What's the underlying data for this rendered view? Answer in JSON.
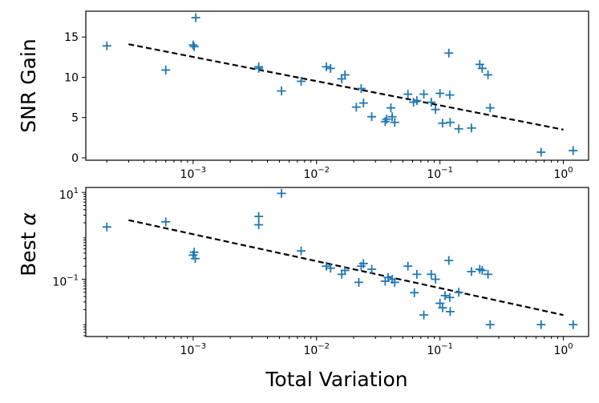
{
  "chart_data": [
    {
      "type": "scatter",
      "ylabel": "SNR Gain",
      "yscale": "linear",
      "xscale": "log",
      "xlim": [
        0.000135,
        1.6
      ],
      "ylim": [
        -0.3,
        18.2
      ],
      "ytick_values": [
        0,
        5,
        10,
        15
      ],
      "ytick_labels": [
        "0",
        "5",
        "10",
        "15"
      ],
      "xtick_values": [
        0.001,
        0.01,
        0.1,
        1
      ],
      "xtick_labels": [
        {
          "base": "10",
          "exp": "−3"
        },
        {
          "base": "10",
          "exp": "−2"
        },
        {
          "base": "10",
          "exp": "−1"
        },
        {
          "base": "10",
          "exp": "0"
        }
      ],
      "trend_line": {
        "x": [
          0.0003,
          1.0
        ],
        "y": [
          14.1,
          3.5
        ]
      },
      "points": [
        {
          "x": 0.0002,
          "y": 13.9
        },
        {
          "x": 0.0006,
          "y": 10.9
        },
        {
          "x": 0.001,
          "y": 14.0
        },
        {
          "x": 0.00102,
          "y": 13.8
        },
        {
          "x": 0.00105,
          "y": 17.4
        },
        {
          "x": 0.0034,
          "y": 11.3
        },
        {
          "x": 0.0034,
          "y": 11.1
        },
        {
          "x": 0.0052,
          "y": 8.3
        },
        {
          "x": 0.0075,
          "y": 9.5
        },
        {
          "x": 0.012,
          "y": 11.3
        },
        {
          "x": 0.013,
          "y": 11.1
        },
        {
          "x": 0.016,
          "y": 9.8
        },
        {
          "x": 0.017,
          "y": 10.3
        },
        {
          "x": 0.021,
          "y": 6.3
        },
        {
          "x": 0.023,
          "y": 8.6
        },
        {
          "x": 0.024,
          "y": 6.8
        },
        {
          "x": 0.028,
          "y": 5.1
        },
        {
          "x": 0.036,
          "y": 4.5
        },
        {
          "x": 0.037,
          "y": 4.8
        },
        {
          "x": 0.04,
          "y": 6.2
        },
        {
          "x": 0.041,
          "y": 5.1
        },
        {
          "x": 0.043,
          "y": 4.4
        },
        {
          "x": 0.055,
          "y": 7.9
        },
        {
          "x": 0.061,
          "y": 6.9
        },
        {
          "x": 0.065,
          "y": 7.1
        },
        {
          "x": 0.074,
          "y": 7.9
        },
        {
          "x": 0.085,
          "y": 6.9
        },
        {
          "x": 0.092,
          "y": 6.0
        },
        {
          "x": 0.1,
          "y": 8.0
        },
        {
          "x": 0.105,
          "y": 4.3
        },
        {
          "x": 0.118,
          "y": 13.0
        },
        {
          "x": 0.12,
          "y": 7.8
        },
        {
          "x": 0.121,
          "y": 4.4
        },
        {
          "x": 0.142,
          "y": 3.6
        },
        {
          "x": 0.18,
          "y": 3.7
        },
        {
          "x": 0.21,
          "y": 11.6
        },
        {
          "x": 0.22,
          "y": 11.1
        },
        {
          "x": 0.245,
          "y": 10.3
        },
        {
          "x": 0.255,
          "y": 6.2
        },
        {
          "x": 0.66,
          "y": 0.7
        },
        {
          "x": 1.2,
          "y": 0.9
        }
      ]
    },
    {
      "type": "scatter",
      "ylabel_prefix": "Best ",
      "ylabel_symbol": "α",
      "yscale": "log",
      "xscale": "log",
      "xlim": [
        0.000135,
        1.6
      ],
      "ylim": [
        0.0048,
        13.0
      ],
      "ytick_values": [
        10,
        0.1
      ],
      "ytick_labels": [
        {
          "base": "10",
          "exp": "1"
        },
        {
          "base": "10",
          "exp": "−1"
        }
      ],
      "xtick_values": [
        0.001,
        0.01,
        0.1,
        1
      ],
      "xtick_labels": [
        {
          "base": "10",
          "exp": "−3"
        },
        {
          "base": "10",
          "exp": "−2"
        },
        {
          "base": "10",
          "exp": "−1"
        },
        {
          "base": "10",
          "exp": "0"
        }
      ],
      "xlabel": "Total Variation",
      "trend_line": {
        "x": [
          0.0003,
          1.0
        ],
        "y": [
          2.3,
          0.015
        ]
      },
      "points": [
        {
          "x": 0.0002,
          "y": 1.6
        },
        {
          "x": 0.0006,
          "y": 2.1
        },
        {
          "x": 0.001,
          "y": 0.36
        },
        {
          "x": 0.00102,
          "y": 0.42
        },
        {
          "x": 0.00104,
          "y": 0.3
        },
        {
          "x": 0.0034,
          "y": 2.8
        },
        {
          "x": 0.0034,
          "y": 1.8
        },
        {
          "x": 0.0052,
          "y": 9.5
        },
        {
          "x": 0.0075,
          "y": 0.45
        },
        {
          "x": 0.012,
          "y": 0.2
        },
        {
          "x": 0.013,
          "y": 0.18
        },
        {
          "x": 0.016,
          "y": 0.13
        },
        {
          "x": 0.017,
          "y": 0.16
        },
        {
          "x": 0.022,
          "y": 0.085
        },
        {
          "x": 0.023,
          "y": 0.2
        },
        {
          "x": 0.024,
          "y": 0.23
        },
        {
          "x": 0.028,
          "y": 0.17
        },
        {
          "x": 0.036,
          "y": 0.09
        },
        {
          "x": 0.038,
          "y": 0.11
        },
        {
          "x": 0.041,
          "y": 0.1
        },
        {
          "x": 0.043,
          "y": 0.085
        },
        {
          "x": 0.055,
          "y": 0.2
        },
        {
          "x": 0.062,
          "y": 0.049
        },
        {
          "x": 0.065,
          "y": 0.13
        },
        {
          "x": 0.074,
          "y": 0.015
        },
        {
          "x": 0.085,
          "y": 0.13
        },
        {
          "x": 0.092,
          "y": 0.1
        },
        {
          "x": 0.1,
          "y": 0.028
        },
        {
          "x": 0.105,
          "y": 0.022
        },
        {
          "x": 0.11,
          "y": 0.042
        },
        {
          "x": 0.118,
          "y": 0.27
        },
        {
          "x": 0.12,
          "y": 0.038
        },
        {
          "x": 0.121,
          "y": 0.018
        },
        {
          "x": 0.142,
          "y": 0.05
        },
        {
          "x": 0.18,
          "y": 0.15
        },
        {
          "x": 0.21,
          "y": 0.17
        },
        {
          "x": 0.22,
          "y": 0.16
        },
        {
          "x": 0.245,
          "y": 0.13
        },
        {
          "x": 0.255,
          "y": 0.009
        },
        {
          "x": 0.66,
          "y": 0.009
        },
        {
          "x": 1.2,
          "y": 0.009
        }
      ]
    }
  ]
}
